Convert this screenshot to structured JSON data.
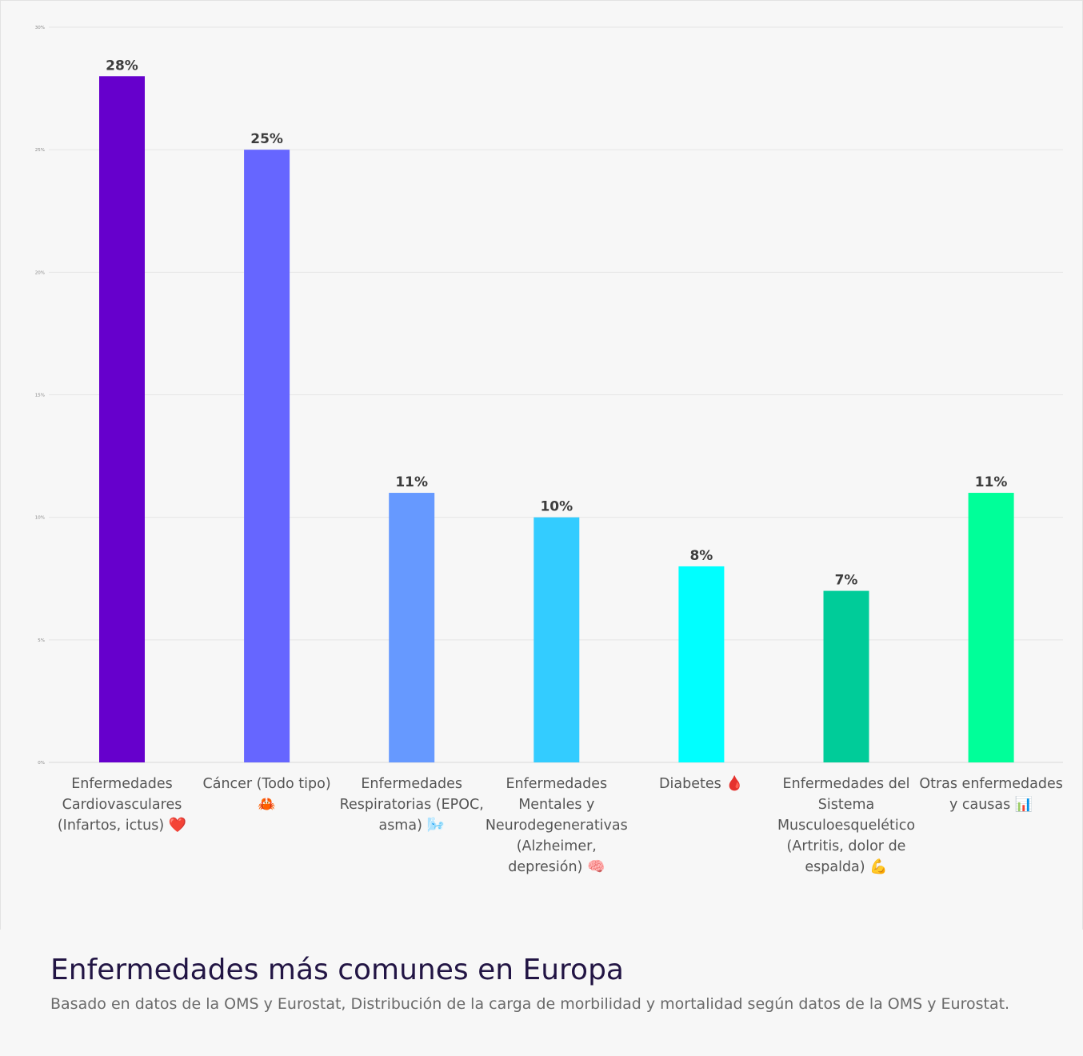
{
  "chart_data": {
    "type": "bar",
    "title": "Enfermedades más comunes en Europa",
    "subtitle": "Basado en datos de la OMS y Eurostat, Distribución de la carga de morbilidad y mortalidad según datos de la OMS y Eurostat.",
    "xlabel": "",
    "ylabel": "",
    "ylim": [
      0,
      30
    ],
    "yticks": [
      0,
      5,
      10,
      15,
      20,
      25,
      30
    ],
    "ytick_labels": [
      "0%",
      "5%",
      "10%",
      "15%",
      "20%",
      "25%",
      "30%"
    ],
    "grid": true,
    "categories": [
      "Enfermedades Cardiovasculares (Infartos, ictus)",
      "Cáncer (Todo tipo)",
      "Enfermedades Respiratorias (EPOC, asma)",
      "Enfermedades Mentales y Neurodegenerativas (Alzheimer, depresión)",
      "Diabetes",
      "Enfermedades del Sistema Musculoesquelético (Artritis, dolor de espalda)",
      "Otras enfermedades y causas"
    ],
    "category_icons": [
      "❤️",
      "🦀",
      "🌬️",
      "🧠",
      "🩸",
      "💪",
      "📊"
    ],
    "values": [
      28,
      25,
      11,
      10,
      8,
      7,
      11
    ],
    "data_labels": [
      "28%",
      "25%",
      "11%",
      "10%",
      "8%",
      "7%",
      "11%"
    ],
    "colors": [
      "#6600cc",
      "#6666ff",
      "#6699ff",
      "#33ccff",
      "#00ffff",
      "#00cc99",
      "#00ff99"
    ]
  }
}
